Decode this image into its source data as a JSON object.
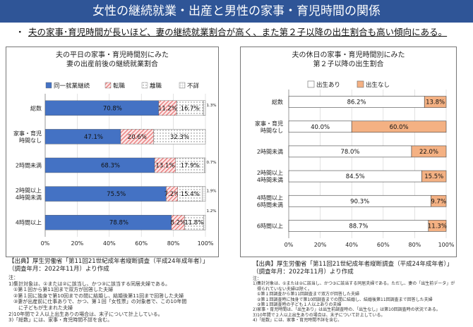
{
  "header": {
    "title": "女性の継続就業・出産と男性の家事・育児時間の関係"
  },
  "lead": {
    "bullet": "・",
    "text": "夫の家事･育児時間が長いほど、妻の継続就業割合が高く、また第２子以降の出生割合も高い傾向にある。"
  },
  "colors": {
    "header_bg": "#2f5597",
    "blue": "#4472c4",
    "red_hatch": "#e04040",
    "orange": "#f4b183"
  },
  "chart_data": [
    {
      "type": "bar",
      "orientation": "horizontal-stacked",
      "title": "夫の平日の家事・育児時間別にみた\n妻の出産前後の継続就業割合",
      "categories": [
        "総数",
        "家事・育児\n時間なし",
        "2時間未満",
        "2時間以上\n4時間未満",
        "4時間以上"
      ],
      "series": [
        {
          "name": "同一就業継続",
          "values": [
            70.8,
            47.1,
            68.3,
            75.5,
            78.8
          ],
          "color": "#4472c4",
          "pattern": "solid"
        },
        {
          "name": "転職",
          "values": [
            11.2,
            20.6,
            13.1,
            7.2,
            8.2
          ],
          "color": "#e04040",
          "pattern": "hatch"
        },
        {
          "name": "離職",
          "values": [
            16.7,
            32.3,
            17.9,
            15.4,
            11.8
          ],
          "color": "#888888",
          "pattern": "dots"
        },
        {
          "name": "不詳",
          "values": [
            1.3,
            null,
            0.7,
            1.9,
            1.2
          ],
          "color": "#aaaaaa",
          "pattern": "grid"
        }
      ],
      "value_labels": [
        [
          "70.8%",
          "11.2%",
          "16.7%",
          "1.3%"
        ],
        [
          "47.1%",
          "20.6%",
          "32.3%",
          ""
        ],
        [
          "68.3%",
          "13.1%",
          "17.9%",
          "0.7%"
        ],
        [
          "75.5%",
          "7.2%",
          "15.4%",
          "1.9%"
        ],
        [
          "78.8%",
          "8.2%",
          "11.8%",
          "1.2%"
        ]
      ],
      "xticks": [
        "0%",
        "20%",
        "40%",
        "60%",
        "80%",
        "100%"
      ],
      "xlim": [
        0,
        100
      ],
      "legend": "top",
      "source": "【出典】厚生労働省「第11回21世紀成年者縦断調査（平成24年成年者）」\n（調査年月：2022年11月）より作成",
      "notes": "注：\n1)集計対象は、①または②に該当し、かつ③に該当する同居夫婦である。\n　①第１回から第11回まで双方が回答した夫婦\n　②第１回に独身で第10回までの間に結婚し、結婚後第11回まで回答した夫婦\n　③妻が出産前に仕事ありで、かつ、第１回「女性票」の対象者で、この10年間\n　　に子どもが生まれた夫婦\n2)10年間で２人以上出生ありの場合は、末子について計上している。\n3)「総数」には、家事・育児時間不詳を含む。"
    },
    {
      "type": "bar",
      "orientation": "horizontal-stacked",
      "title": "夫の休日の家事・育児時間別にみた\n第２子以降の出生割合",
      "categories": [
        "総数",
        "家事・育児\n時間なし",
        "2時間未満",
        "2時間以上\n4時間未満",
        "4時間以上\n6時間未満",
        "6時間以上"
      ],
      "series": [
        {
          "name": "出生あり",
          "values": [
            86.2,
            40.0,
            78.0,
            84.5,
            90.3,
            88.7
          ],
          "color": "#ffffff"
        },
        {
          "name": "出生なし",
          "values": [
            13.8,
            60.0,
            22.0,
            15.5,
            9.7,
            11.3
          ],
          "color": "#f4b183"
        }
      ],
      "value_labels": [
        [
          "86.2%",
          "13.8%"
        ],
        [
          "40.0%",
          "60.0%"
        ],
        [
          "78.0%",
          "22.0%"
        ],
        [
          "84.5%",
          "15.5%"
        ],
        [
          "90.3%",
          "9.7%"
        ],
        [
          "88.7%",
          "11.3%"
        ]
      ],
      "xticks": [
        "0%",
        "20%",
        "40%",
        "60%",
        "80%",
        "100%"
      ],
      "xlim": [
        0,
        100
      ],
      "legend": "top",
      "source": "【出典】厚生労働省「第11回21世紀成年者縦断調査（平成24年成年者）」\n（調査年月：2022年11月）より作成",
      "notes": "注：\n1)集計対象は、①または②に該当し、かつ③に該当する同居夫婦である。ただし、妻の「出生前データ」が\n　得られていない夫婦は除く。\n　①第１回調査から第11回調査まで双方が回答した夫婦\n　②第１回調査時に独身で第10回調査までの間に結婚し、結婚後第11回調査まで回答した夫婦\n　③第１回調査時の子ども１人以上ありの夫婦\n2)家事・育児時間は、「出生あり」は出生前調査時の、「出生なし」は第10回調査時の状況である。\n3)10年間で２人以上出生ありの場合は、末子について計上している。\n4)「総数」には、家事・育児時間不詳を含む。"
    }
  ]
}
